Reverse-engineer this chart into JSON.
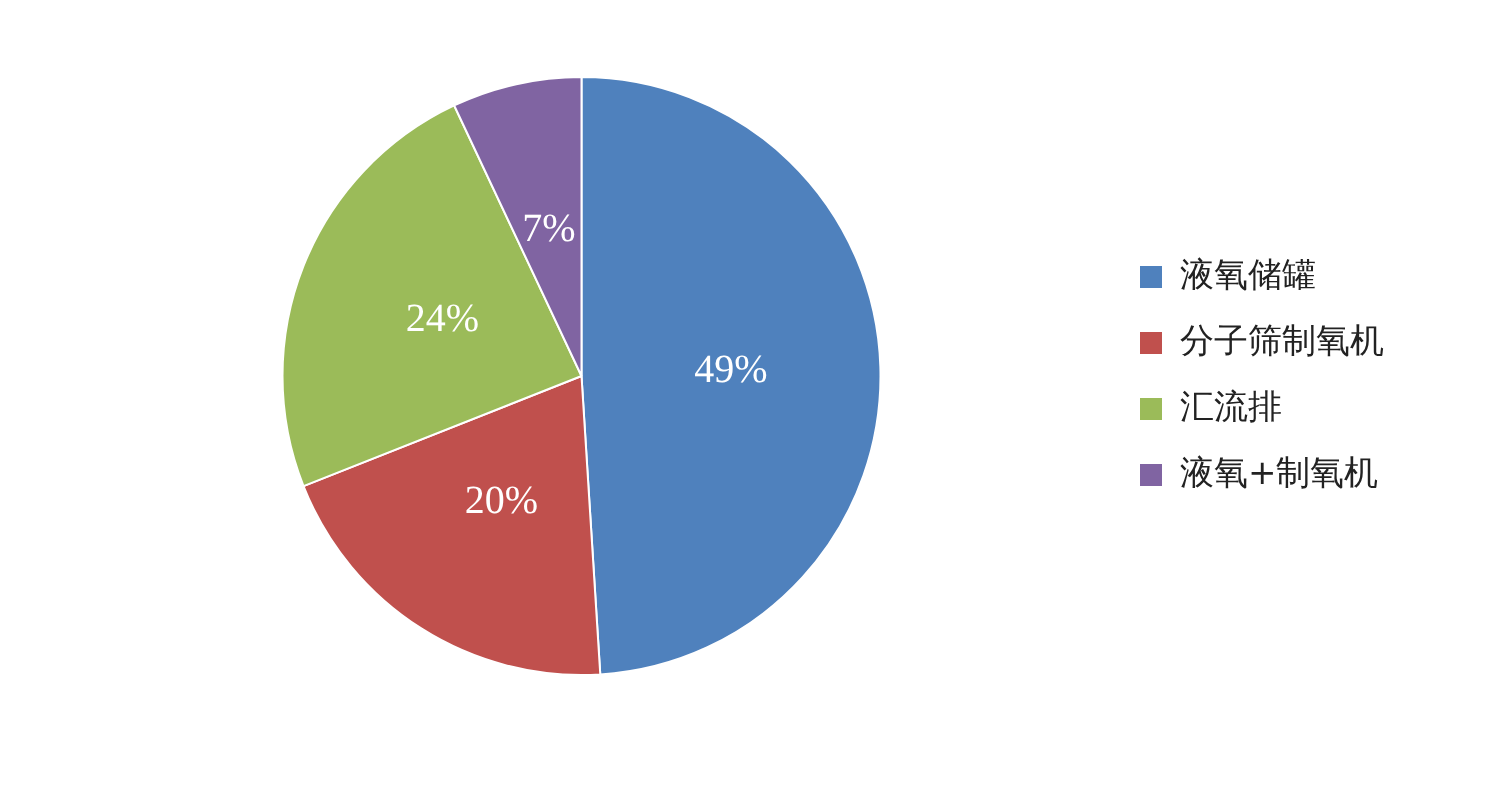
{
  "chart_data": {
    "type": "pie",
    "categories": [
      "液氧储罐",
      "分子筛制氧机",
      "汇流排",
      "液氧+制氧机"
    ],
    "values": [
      49,
      20,
      24,
      7
    ],
    "colors": [
      "#4f81bd",
      "#c0504d",
      "#9bbb59",
      "#8064a2"
    ],
    "value_labels": [
      "49%",
      "20%",
      "24%",
      "7%"
    ],
    "legend": "right"
  }
}
